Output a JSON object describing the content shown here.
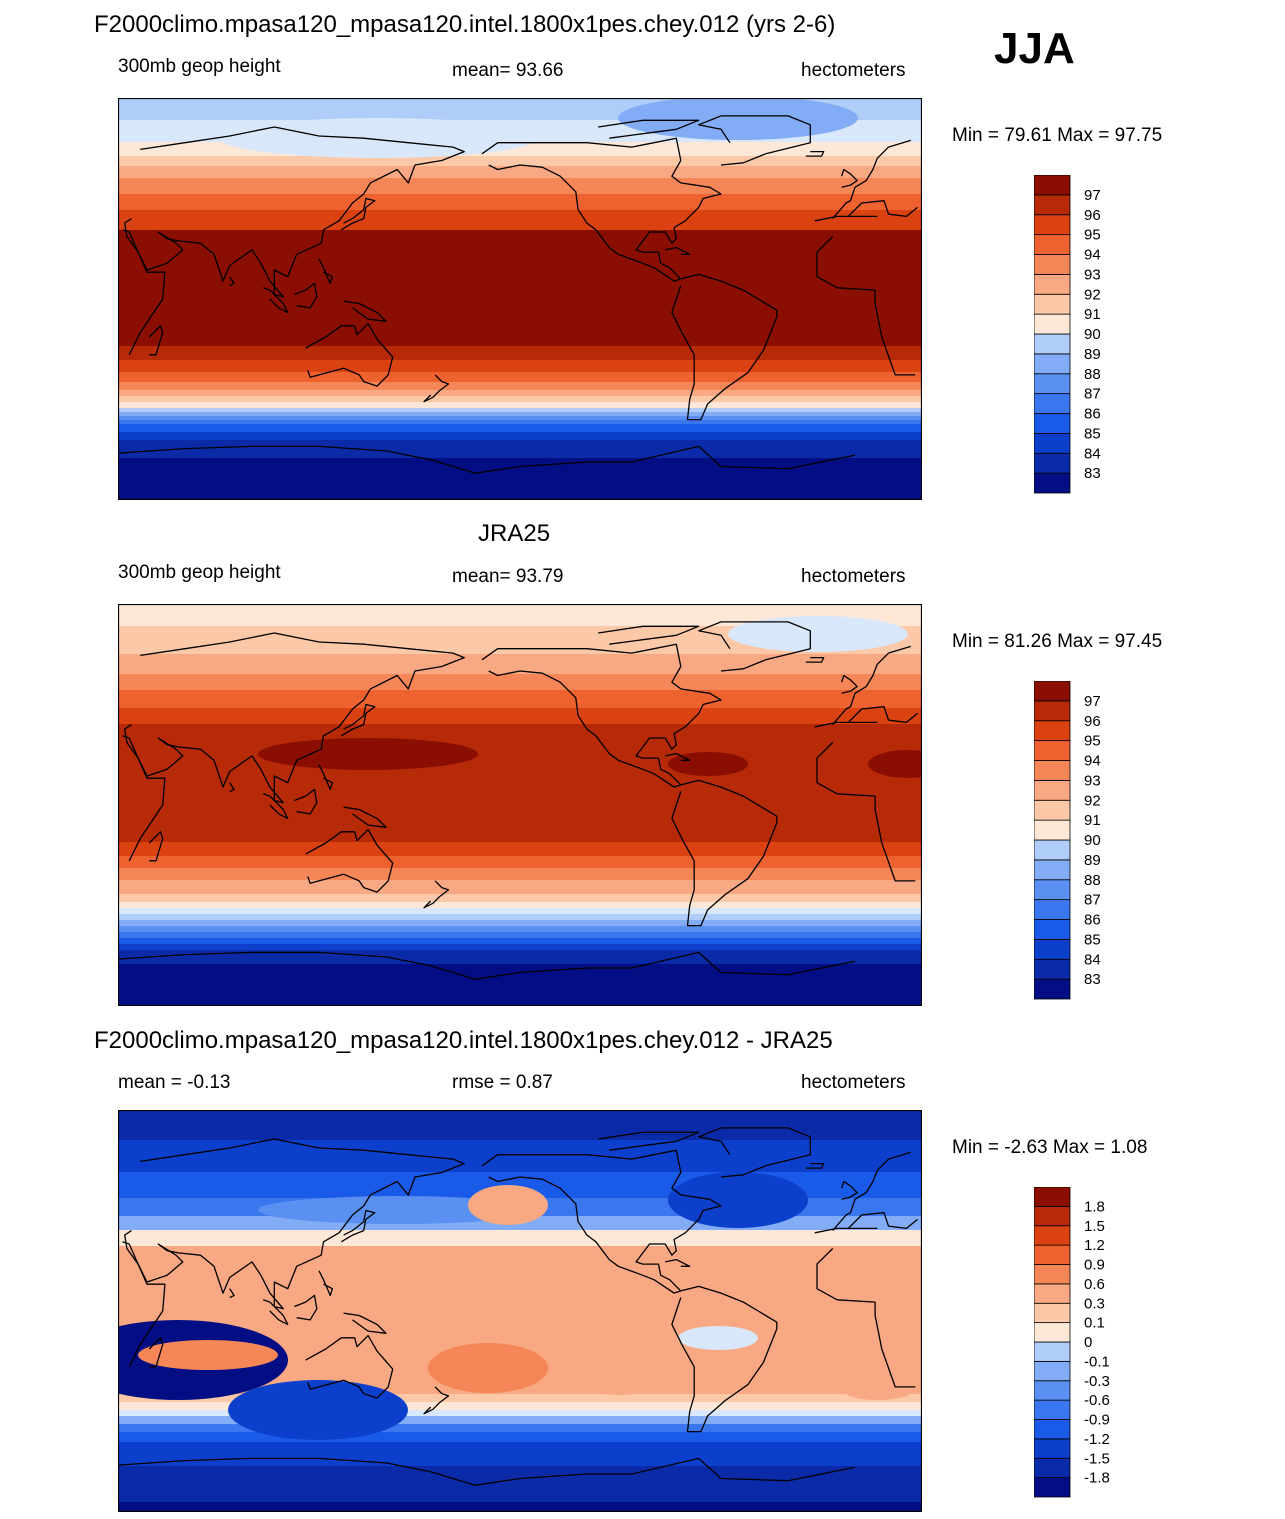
{
  "season": "JJA",
  "colors": {
    "ramp": [
      "#040e84",
      "#0a2aa8",
      "#0b3fcc",
      "#1a5ae8",
      "#3a76ee",
      "#5a90f2",
      "#82acf6",
      "#b0ccf8",
      "#d8e8fa",
      "#fde8d8",
      "#fbc8a8",
      "#f8a882",
      "#f58658",
      "#ee6230",
      "#db4212",
      "#b62a08",
      "#8a0e02"
    ],
    "coastline": "#000000"
  },
  "chart_data": [
    {
      "type": "heatmap",
      "title": "F2000climo.mpasa120_mpasa120.intel.1800x1pes.chey.012 (yrs 2-6)",
      "left_label": "300mb geop height",
      "center_label": "mean=  93.66",
      "units": "hectometers",
      "minmax": "Min =  79.61 Max =  97.75",
      "levels": [
        "83",
        "84",
        "85",
        "86",
        "87",
        "88",
        "89",
        "90",
        "91",
        "92",
        "93",
        "94",
        "95",
        "96",
        "97"
      ]
    },
    {
      "type": "heatmap",
      "title": "JRA25",
      "left_label": "300mb geop height",
      "center_label": "mean=  93.79",
      "units": "hectometers",
      "minmax": "Min =  81.26 Max =  97.45",
      "levels": [
        "83",
        "84",
        "85",
        "86",
        "87",
        "88",
        "89",
        "90",
        "91",
        "92",
        "93",
        "94",
        "95",
        "96",
        "97"
      ]
    },
    {
      "type": "heatmap",
      "title": "F2000climo.mpasa120_mpasa120.intel.1800x1pes.chey.012 - JRA25",
      "left_label": "mean =  -0.13",
      "center_label": "rmse =   0.87",
      "units": "hectometers",
      "minmax": "Min =  -2.63 Max =   1.08",
      "levels": [
        "-1.8",
        "-1.5",
        "-1.2",
        "-0.9",
        "-0.6",
        "-0.3",
        "-0.1",
        "0",
        "0.1",
        "0.3",
        "0.6",
        "0.9",
        "1.2",
        "1.5",
        "1.8"
      ]
    }
  ]
}
